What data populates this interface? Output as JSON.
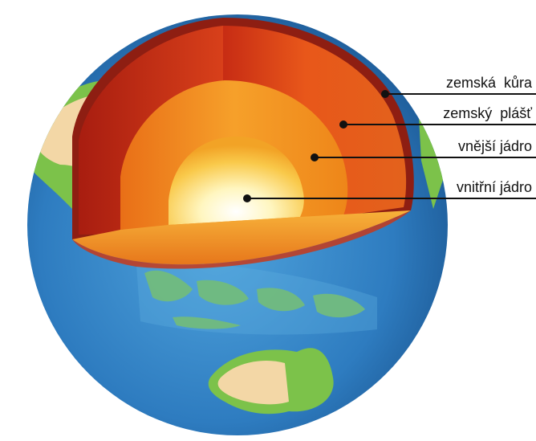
{
  "diagram": {
    "labels": {
      "crust": "zemská  kůra",
      "mantle": "zemský  plášť",
      "outer_core": "vnější jádro",
      "inner_core": "vnitřní jádro"
    },
    "colors": {
      "ocean": "#2f7fc4",
      "ocean_shallow": "#5fb0e0",
      "land_green": "#7cc24a",
      "land_sand": "#f3d7a6",
      "crust": "#8e1e12",
      "mantle": "#d9471a",
      "outer_core": "#f08a1a",
      "inner_core": "#fff1a8",
      "leader": "#111111"
    }
  }
}
